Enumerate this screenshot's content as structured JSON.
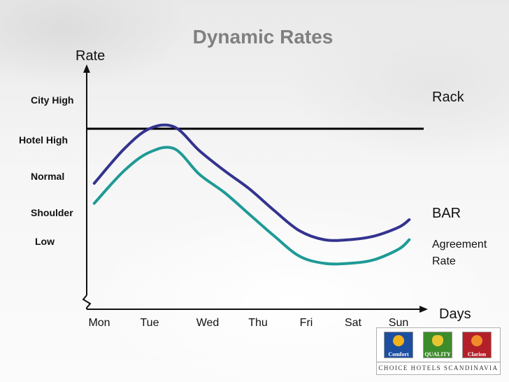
{
  "chart_data": {
    "type": "line",
    "title": "Dynamic Rates",
    "ylabel": "Rate",
    "xlabel": "Days",
    "categories": [
      "Mon",
      "Tue",
      "Wed",
      "Thu",
      "Fri",
      "Sat",
      "Sun"
    ],
    "y_levels": [
      "Low",
      "Shoulder",
      "Normal",
      "Hotel High",
      "City High"
    ],
    "ylim": [
      0,
      5
    ],
    "grid": false,
    "legend": "inline labels at right end of lines",
    "series": [
      {
        "name": "Rack",
        "color": "#000000",
        "x": [
          0,
          6.5
        ],
        "y": [
          4.0,
          4.0
        ]
      },
      {
        "name": "BAR",
        "color": "#33338f",
        "x": [
          -0.1,
          0.5,
          1.0,
          1.5,
          2.0,
          2.5,
          3.0,
          3.5,
          4.0,
          4.5,
          5.0,
          5.5,
          6.0,
          6.2
        ],
        "y": [
          2.5,
          3.45,
          4.0,
          4.05,
          3.4,
          2.85,
          2.35,
          1.75,
          1.2,
          0.95,
          0.95,
          1.05,
          1.3,
          1.5
        ]
      },
      {
        "name": "Agreement Rate",
        "color": "#1e9a96",
        "x": [
          -0.1,
          0.5,
          1.0,
          1.5,
          2.0,
          2.5,
          3.0,
          3.5,
          4.0,
          4.5,
          5.0,
          5.5,
          6.0,
          6.2
        ],
        "y": [
          1.95,
          2.85,
          3.35,
          3.45,
          2.75,
          2.25,
          1.65,
          1.05,
          0.5,
          0.3,
          0.3,
          0.4,
          0.7,
          0.95
        ]
      }
    ]
  },
  "footer": {
    "logos": [
      "Comfort",
      "QUALITY",
      "Clarion"
    ],
    "brand_text": "CHOICE HOTELS SCANDINAVIA"
  }
}
